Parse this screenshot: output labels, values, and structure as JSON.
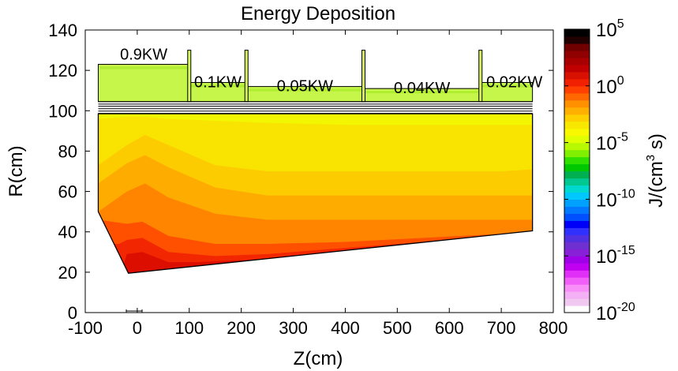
{
  "chart_data": {
    "type": "heatmap",
    "title": "Energy Deposition",
    "xlabel": "Z(cm)",
    "ylabel": "R(cm)",
    "xlim": [
      -100,
      800
    ],
    "ylim": [
      0,
      140
    ],
    "x_ticks": [
      -100,
      0,
      100,
      200,
      300,
      400,
      500,
      600,
      700,
      800
    ],
    "y_ticks": [
      0,
      20,
      40,
      60,
      80,
      100,
      120,
      140
    ],
    "colorbar": {
      "label_prefix": "J/(cm",
      "label_sup": "3",
      "label_suffix": " s)",
      "log_range": [
        -20,
        5
      ],
      "tick_exponents": [
        5,
        0,
        -5,
        -10,
        -15,
        -20
      ],
      "tick_base": "10",
      "tick_labels": [
        "10^5",
        "10^0",
        "10^-5",
        "10^-10",
        "10^-15",
        "10^-20"
      ],
      "colors": [
        "#ffffff",
        "#f0c8f0",
        "#f4b0f4",
        "#f88ef8",
        "#f060f8",
        "#e030f8",
        "#c000f0",
        "#a000e8",
        "#8820d8",
        "#6e30d0",
        "#5030e0",
        "#3030ff",
        "#0000f8",
        "#0050ff",
        "#0078ff",
        "#00a0ff",
        "#00c8ff",
        "#00d8d0",
        "#00c890",
        "#00b050",
        "#00c800",
        "#30e000",
        "#80f000",
        "#b8f800",
        "#e0ff00",
        "#f8f800",
        "#f8e800",
        "#ffd000",
        "#ffb000",
        "#ff9000",
        "#ff6800",
        "#ff4000",
        "#f02000",
        "#d81000",
        "#c00000",
        "#a80000",
        "#900000",
        "#700000",
        "#200000",
        "#000000"
      ]
    },
    "geometry": {
      "cone_polygon_zr": [
        [
          -75,
          50
        ],
        [
          -17,
          19.5
        ],
        [
          760,
          40.5
        ],
        [
          760,
          98.5
        ],
        [
          -75,
          98.5
        ]
      ],
      "sections": [
        {
          "label": "0.9KW",
          "z0": -75,
          "z1": 100,
          "r_top": 123
        },
        {
          "label": "0.1KW",
          "z0": 100,
          "z1": 210,
          "r_top": 114
        },
        {
          "label": "0.05KW",
          "z0": 210,
          "z1": 435,
          "r_top": 112
        },
        {
          "label": "0.04KW",
          "z0": 435,
          "z1": 660,
          "r_top": 111
        },
        {
          "label": "0.02KW",
          "z0": 660,
          "z1": 760,
          "r_top": 114
        }
      ],
      "section_base_r": 104.5,
      "shield_line_r": [
        104.5,
        103.3,
        102.2,
        101,
        99.8,
        98.7
      ],
      "flange_r_top": 130
    },
    "series": [
      {
        "name": "contour-1e-3 boundary (R vs Z)",
        "x": [
          -75,
          -20,
          15,
          60,
          150,
          250,
          400,
          550,
          700,
          760
        ],
        "y": [
          96,
          97,
          97,
          96,
          95,
          94,
          93,
          93,
          93,
          93
        ]
      },
      {
        "name": "contour-1e-2 boundary (R vs Z)",
        "x": [
          -75,
          -20,
          15,
          60,
          150,
          250,
          400,
          550,
          700,
          760
        ],
        "y": [
          73,
          83,
          88,
          83,
          73,
          70,
          70,
          70,
          70,
          71
        ]
      },
      {
        "name": "contour-1e-1 boundary (R vs Z)",
        "x": [
          -75,
          -20,
          15,
          60,
          150,
          250,
          400,
          550,
          700,
          760
        ],
        "y": [
          64,
          74,
          78,
          72,
          62,
          58,
          58,
          58,
          58,
          58
        ]
      },
      {
        "name": "contour-1e0 boundary (R vs Z)",
        "x": [
          -75,
          -20,
          15,
          60,
          150,
          250,
          400,
          550,
          700,
          760
        ],
        "y": [
          50,
          60,
          64,
          57,
          49,
          46,
          46,
          46,
          46,
          46
        ]
      },
      {
        "name": "contour-1e1 boundary (R vs Z)",
        "x": [
          -75,
          -20,
          10,
          60,
          150,
          250,
          400,
          550,
          700,
          760
        ],
        "y": [
          46,
          44,
          45,
          38,
          34,
          34,
          35,
          37,
          39,
          40
        ]
      },
      {
        "name": "contour-1e2 boundary (R vs Z)",
        "x": [
          -35,
          -20,
          10,
          60,
          150,
          250,
          400,
          550,
          700,
          760
        ],
        "y": [
          34,
          36,
          37,
          30,
          28,
          29,
          32,
          35,
          38,
          40
        ]
      },
      {
        "name": "contour-1e3 boundary (R vs Z)",
        "x": [
          -26,
          -20,
          10,
          60,
          120,
          200,
          300
        ],
        "y": [
          24,
          29,
          30,
          25,
          25,
          26,
          27
        ]
      }
    ]
  }
}
